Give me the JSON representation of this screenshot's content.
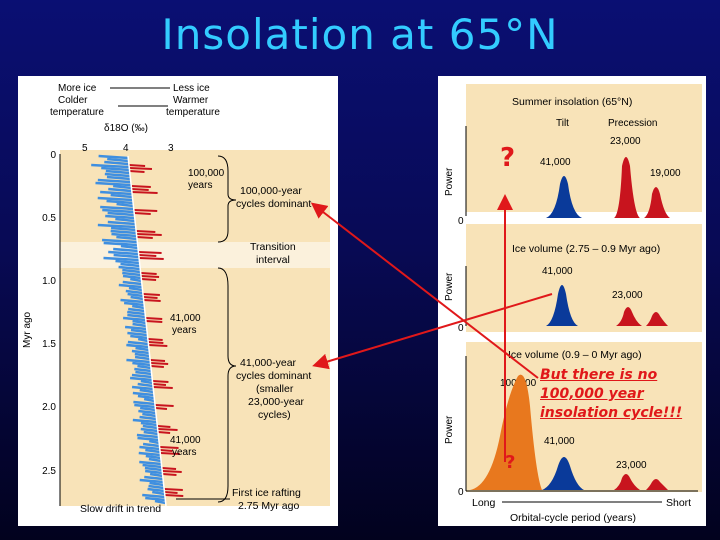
{
  "title": "Insolation at 65°N",
  "left_figure": {
    "header_left": [
      "More ice",
      "Colder",
      "temperature"
    ],
    "header_right": [
      "Less ice",
      "Warmer",
      "temperature"
    ],
    "isotope_label": "δ18O (‰)",
    "isotope_ticks": [
      "5",
      "4",
      "3"
    ],
    "y_axis_label": "Myr ago",
    "y_ticks": [
      "0",
      "0.5",
      "1.0",
      "1.5",
      "2.0",
      "2.5"
    ],
    "annotations": {
      "cycles_100k_small": [
        "100,000",
        "years"
      ],
      "cycles_100k_dominant": [
        "100,000-year",
        "cycles dominant"
      ],
      "transition": [
        "Transition",
        "interval"
      ],
      "cycles_41k_small_1": [
        "41,000",
        "years"
      ],
      "cycles_41k_dominant": [
        "41,000-year",
        "cycles dominant",
        "(smaller",
        "23,000-year",
        "cycles)"
      ],
      "cycles_41k_small_2": [
        "41,000",
        "years"
      ],
      "first_ice": [
        "First ice rafting",
        "2.75 Myr ago"
      ],
      "slow_drift": "Slow drift in trend"
    }
  },
  "right_figure": {
    "panel1_title": "Summer insolation (65°N)",
    "tilt_label": "Tilt",
    "precession_label": "Precession",
    "p1_tilt_period": "41,000",
    "p1_prec_period_1": "23,000",
    "p1_prec_period_2": "19,000",
    "power_label": "Power",
    "zero_label": "0",
    "panel2_title": "Ice volume (2.75 – 0.9 Myr ago)",
    "p2_tilt_period": "41,000",
    "p2_prec_period": "23,000",
    "panel3_title": "Ice volume (0.9 – 0 Myr ago)",
    "p3_100k_period": "100,000",
    "p3_tilt_period": "41,000",
    "p3_prec_period": "23,000",
    "x_long": "Long",
    "x_short": "Short",
    "x_axis_label": "Orbital-cycle period (years)"
  },
  "overlay": {
    "question_mark_1": "?",
    "question_mark_2": "?",
    "callout_lines": [
      "But there is no",
      "100,000 year",
      "insolation cycle!!!"
    ]
  },
  "colors": {
    "title": "#33ccff",
    "arrow_red": "#e0181a",
    "blue_peak": "#0a3a9a",
    "red_peak": "#c8141e",
    "panel_bg": "#f8e3b8"
  }
}
